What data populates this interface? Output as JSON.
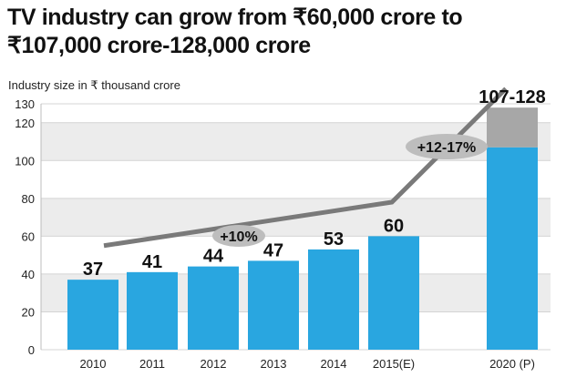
{
  "title_line1": "TV industry can grow from ₹60,000 crore to",
  "title_line2": "₹107,000 crore-128,000 crore",
  "chart_data": {
    "type": "bar",
    "ylabel": "Industry size in ₹ thousand crore",
    "ylim": [
      0,
      130
    ],
    "yticks": [
      0,
      20,
      40,
      60,
      80,
      100,
      120,
      130
    ],
    "grid": true,
    "categories": [
      "2010",
      "2011",
      "2012",
      "2013",
      "2014",
      "2015(E)",
      "2020 (P)"
    ],
    "values": [
      37,
      41,
      44,
      47,
      53,
      60,
      107
    ],
    "upper_range": {
      "category": "2020 (P)",
      "from": 107,
      "to": 128
    },
    "data_labels": [
      "37",
      "41",
      "44",
      "47",
      "53",
      "60",
      "107-128"
    ],
    "bar_color": "#29a6e0",
    "range_color": "#a7a7a7",
    "trend_line": {
      "color": "#7a7a7a",
      "points": [
        {
          "x": "2010",
          "y": 55
        },
        {
          "x": "2015(E)",
          "y": 78
        },
        {
          "x": "2020 (P)",
          "y": 138
        }
      ]
    },
    "annotations": [
      {
        "text": "+10%",
        "x": "2012",
        "y": 65
      },
      {
        "text": "+12-17%",
        "x": "2015(E)",
        "y": 111
      }
    ]
  }
}
